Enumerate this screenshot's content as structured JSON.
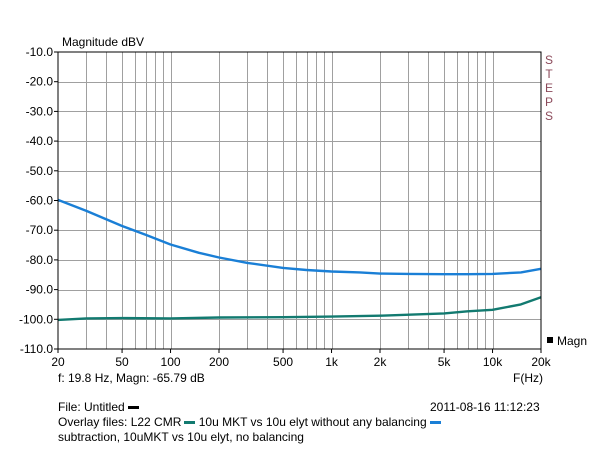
{
  "chart_data": {
    "type": "line",
    "title": "Magnitude dBV",
    "xlabel": "F(Hz)",
    "ylabel": "Magnitude dBV",
    "x_scale": "log",
    "xlim": [
      20,
      20000
    ],
    "ylim": [
      -110,
      -10
    ],
    "x_ticks": [
      "20",
      "50",
      "100",
      "200",
      "500",
      "1k",
      "2k",
      "5k",
      "10k",
      "20k"
    ],
    "x_tick_values": [
      20,
      50,
      100,
      200,
      500,
      1000,
      2000,
      5000,
      10000,
      20000
    ],
    "y_ticks": [
      "-10.0",
      "-20.0",
      "-30.0",
      "-40.0",
      "-50.0",
      "-60.0",
      "-70.0",
      "-80.0",
      "-90.0",
      "-100.0",
      "-110.0"
    ],
    "y_tick_values": [
      -10,
      -20,
      -30,
      -40,
      -50,
      -60,
      -70,
      -80,
      -90,
      -100,
      -110
    ],
    "grid": true,
    "side_label": "STEPS",
    "legend": {
      "label": "Magn",
      "placement": "bottom-right"
    },
    "cursor_readout": "f:  19.8 Hz, Magn: -65.79 dB",
    "series": [
      {
        "name": "10u MKT vs 10u elyt without any balancing",
        "color": "#1a7fd6",
        "x": [
          20,
          30,
          50,
          70,
          100,
          150,
          200,
          300,
          500,
          700,
          1000,
          1500,
          2000,
          3000,
          5000,
          7000,
          10000,
          15000,
          20000
        ],
        "y": [
          -59.8,
          -63.5,
          -68.6,
          -71.5,
          -74.8,
          -77.6,
          -79.2,
          -81.0,
          -82.7,
          -83.4,
          -83.9,
          -84.2,
          -84.6,
          -84.7,
          -84.8,
          -84.8,
          -84.7,
          -84.2,
          -83.0
        ]
      },
      {
        "name": "L22 CMR",
        "color": "#127a70",
        "x": [
          20,
          30,
          50,
          100,
          200,
          500,
          1000,
          2000,
          5000,
          7000,
          10000,
          15000,
          20000
        ],
        "y": [
          -100.2,
          -99.7,
          -99.6,
          -99.7,
          -99.4,
          -99.3,
          -99.1,
          -98.8,
          -98.0,
          -97.3,
          -96.8,
          -95.0,
          -92.6
        ]
      }
    ]
  },
  "footer": {
    "file_label": "File: Untitled",
    "timestamp": "2011-08-16 11:12:23",
    "overlay_prefix": "Overlay files:",
    "overlay_1": "L22 CMR",
    "overlay_2": "10u MKT vs 10u elyt without any balancing",
    "note": "subtraction, 10uMKT vs 10u elyt, no balancing",
    "colors": {
      "file": "#000000",
      "overlay_1": "#127a70",
      "overlay_2": "#1a7fd6"
    }
  }
}
